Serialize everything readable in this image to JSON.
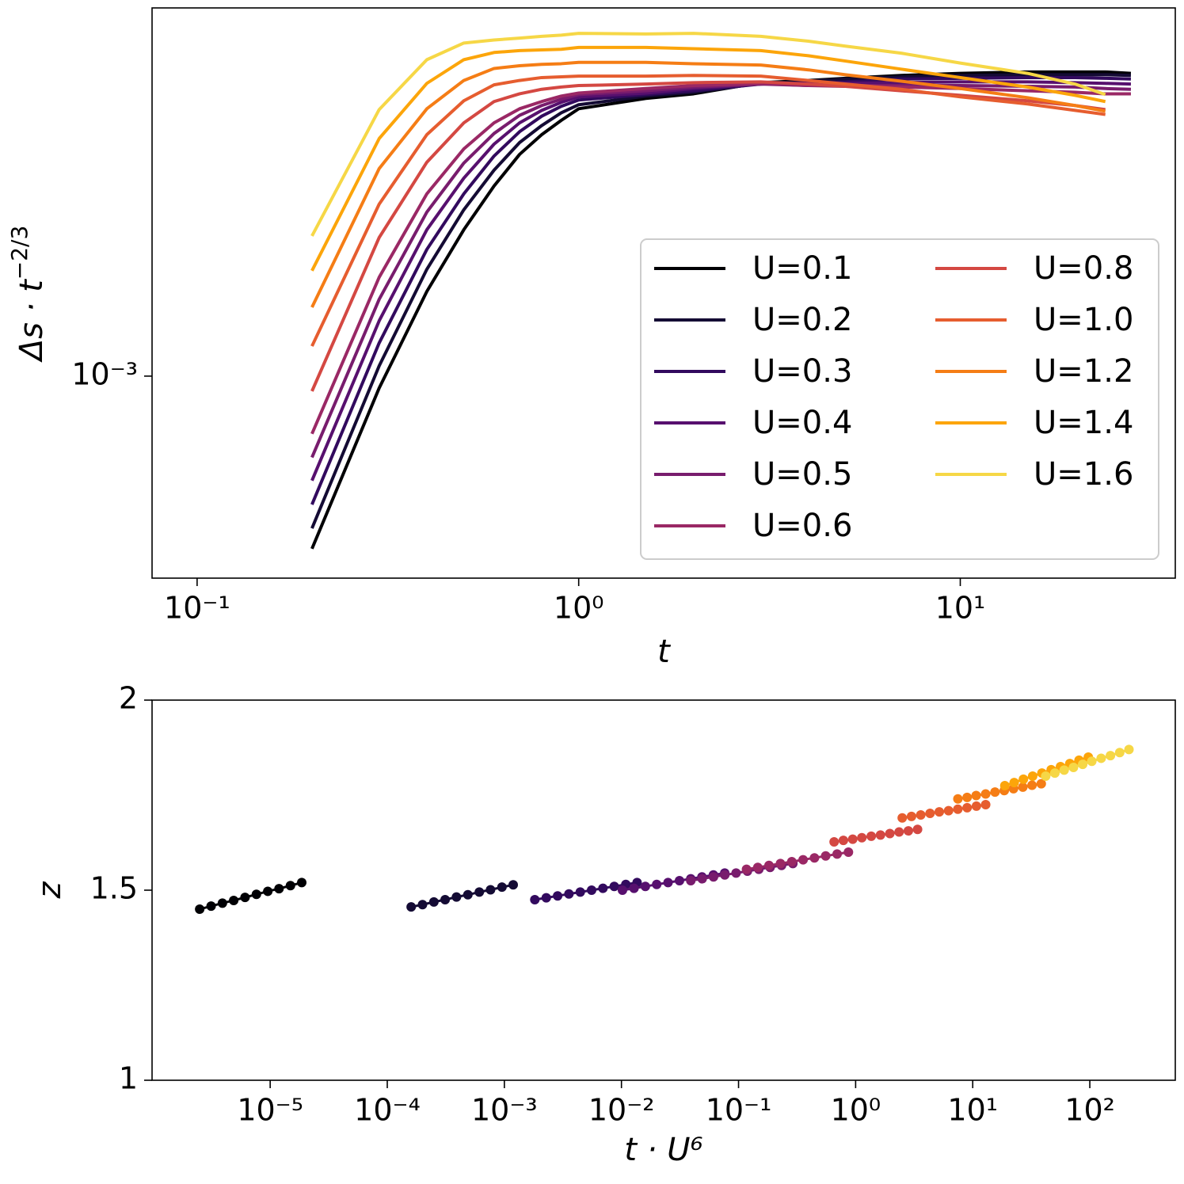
{
  "chart_data": [
    {
      "type": "line",
      "xscale": "log",
      "yscale": "log",
      "xlabel": "t",
      "ylabel": [
        "Δs · t",
        "−2/3"
      ],
      "xlim": [
        0.0762,
        36.6
      ],
      "ylim": [
        0.000436,
        0.00454
      ],
      "xticks": [
        {
          "value": 0.1,
          "label": "10⁻¹"
        },
        {
          "value": 1,
          "label": "10⁰"
        },
        {
          "value": 10,
          "label": "10¹"
        }
      ],
      "yticks": [
        {
          "value": 0.001,
          "label": "10⁻³"
        }
      ],
      "legend": "lower right",
      "legend_ncol": 2,
      "x": [
        0.2,
        0.3,
        0.4,
        0.5,
        0.6,
        0.7,
        0.8,
        0.9,
        1,
        1.5,
        2,
        3,
        4,
        5,
        7,
        10,
        15,
        20,
        24,
        28
      ],
      "series": [
        {
          "name": "U=0.1",
          "color": "#000004",
          "values": [
            0.000492,
            0.000952,
            0.001416,
            0.001825,
            0.002184,
            0.002487,
            0.002697,
            0.00286,
            0.003,
            0.00313,
            0.00319,
            0.00334,
            0.00337,
            0.0034,
            0.00344,
            0.00347,
            0.00349,
            0.00349,
            0.00349,
            0.00347
          ]
        },
        {
          "name": "U=0.2",
          "color": "#140b34",
          "values": [
            0.000535,
            0.001043,
            0.001551,
            0.001981,
            0.002331,
            0.002611,
            0.0028,
            0.00295,
            0.00305,
            0.00316,
            0.00321,
            0.00333,
            0.00336,
            0.00339,
            0.00342,
            0.00344,
            0.00345,
            0.00345,
            0.00345,
            0.00344
          ]
        },
        {
          "name": "U=0.3",
          "color": "#320a5e",
          "values": [
            0.00059,
            0.001146,
            0.001683,
            0.002115,
            0.00247,
            0.00273,
            0.00291,
            0.00303,
            0.00311,
            0.00318,
            0.00323,
            0.00332,
            0.00334,
            0.00335,
            0.00339,
            0.0034,
            0.00341,
            0.00341,
            0.0034,
            0.00339
          ]
        },
        {
          "name": "U=0.4",
          "color": "#57106e",
          "values": [
            0.000651,
            0.001255,
            0.001825,
            0.002256,
            0.002594,
            0.002831,
            0.00298,
            0.00308,
            0.00315,
            0.0032,
            0.00326,
            0.00332,
            0.00333,
            0.00333,
            0.00334,
            0.00335,
            0.00335,
            0.00334,
            0.00333,
            0.00332
          ]
        },
        {
          "name": "U=0.5",
          "color": "#781c6d",
          "values": [
            0.000716,
            0.001371,
            0.001962,
            0.0024,
            0.00271,
            0.00292,
            0.00304,
            0.00312,
            0.00318,
            0.00323,
            0.00328,
            0.00332,
            0.0033,
            0.0033,
            0.0033,
            0.0033,
            0.00329,
            0.00328,
            0.00326,
            0.00325
          ]
        },
        {
          "name": "U=0.6",
          "color": "#9a2865",
          "values": [
            0.000789,
            0.001501,
            0.002115,
            0.002544,
            0.002831,
            0.003,
            0.00309,
            0.00316,
            0.0032,
            0.00326,
            0.0033,
            0.00333,
            0.0033,
            0.00329,
            0.00328,
            0.00326,
            0.00323,
            0.00321,
            0.00319,
            0.00319
          ]
        },
        {
          "name": "U=0.8",
          "color": "#d44842",
          "values": [
            0.00094,
            0.001767,
            0.002408,
            0.002831,
            0.00309,
            0.00319,
            0.00325,
            0.00328,
            0.0033,
            0.00332,
            0.00334,
            0.00335,
            0.00332,
            0.00329,
            0.00323,
            0.00317,
            0.0031,
            0.00304,
            0.00299,
            null
          ]
        },
        {
          "name": "U=1.0",
          "color": "#e65d2f",
          "values": [
            0.001131,
            0.002027,
            0.002697,
            0.0031,
            0.00331,
            0.00337,
            0.00341,
            0.00342,
            0.00343,
            0.00343,
            0.00344,
            0.00343,
            0.00337,
            0.00332,
            0.00325,
            0.00315,
            0.00306,
            0.00298,
            0.00293,
            null
          ]
        },
        {
          "name": "U=1.2",
          "color": "#f57d15",
          "values": [
            0.001327,
            0.002346,
            0.003,
            0.00337,
            0.00354,
            0.00358,
            0.0036,
            0.00361,
            0.00363,
            0.00363,
            0.00361,
            0.00359,
            0.00352,
            0.00345,
            0.00336,
            0.00326,
            0.00314,
            0.00304,
            0.00297,
            null
          ]
        },
        {
          "name": "U=1.4",
          "color": "#fca50a",
          "values": [
            0.001542,
            0.002654,
            0.00333,
            0.00367,
            0.00378,
            0.00381,
            0.00382,
            0.00383,
            0.00386,
            0.00386,
            0.00384,
            0.00381,
            0.00373,
            0.00365,
            0.00353,
            0.00341,
            0.00328,
            0.00317,
            0.00309,
            null
          ]
        },
        {
          "name": "U=1.6",
          "color": "#f6d746",
          "values": [
            0.001779,
            0.00299,
            0.00367,
            0.00393,
            0.00398,
            0.00401,
            0.00404,
            0.00406,
            0.00409,
            0.00408,
            0.00409,
            0.00404,
            0.00396,
            0.00388,
            0.00377,
            0.00362,
            0.00347,
            0.00332,
            0.00318,
            null
          ]
        }
      ]
    },
    {
      "type": "line",
      "markers": true,
      "xscale": "log",
      "xlabel": "t · U⁶",
      "ylabel": [
        "z"
      ],
      "xlim": [
        9.8e-07,
        537
      ],
      "ylim": [
        1,
        2
      ],
      "xticks": [
        {
          "value": 1e-05,
          "label": "10⁻⁵"
        },
        {
          "value": 0.0001,
          "label": "10⁻⁴"
        },
        {
          "value": 0.001,
          "label": "10⁻³"
        },
        {
          "value": 0.01,
          "label": "10⁻²"
        },
        {
          "value": 0.1,
          "label": "10⁻¹"
        },
        {
          "value": 1,
          "label": "10⁰"
        },
        {
          "value": 10,
          "label": "10¹"
        },
        {
          "value": 100,
          "label": "10²"
        }
      ],
      "yticks": [
        1,
        1.5,
        2
      ],
      "series": [
        {
          "color": "#000004",
          "x": [
            2.5e-06,
            3.13e-06,
            3.91e-06,
            4.88e-06,
            6.1e-06,
            7.63e-06,
            9.54e-06,
            1.19e-05,
            1.49e-05,
            1.86e-05
          ],
          "values": [
            1.45,
            1.458,
            1.466,
            1.473,
            1.481,
            1.489,
            1.497,
            1.504,
            1.512,
            1.52
          ]
        },
        {
          "color": "#140b34",
          "x": [
            0.00016,
            0.0002,
            0.00025,
            0.000312,
            0.00039,
            0.000488,
            0.000611,
            0.000762,
            0.000954,
            0.00119
          ],
          "values": [
            1.456,
            1.462,
            1.469,
            1.475,
            1.482,
            1.488,
            1.495,
            1.501,
            1.508,
            1.514
          ]
        },
        {
          "color": "#320a5e",
          "x": [
            0.00182,
            0.00228,
            0.00285,
            0.00356,
            0.00445,
            0.00556,
            0.00695,
            0.00868,
            0.0109,
            0.0136
          ],
          "values": [
            1.475,
            1.48,
            1.485,
            1.49,
            1.495,
            1.5,
            1.505,
            1.51,
            1.515,
            1.52
          ]
        },
        {
          "color": "#57106e",
          "x": [
            0.0102,
            0.0128,
            0.016,
            0.02,
            0.025,
            0.0313,
            0.0391,
            0.0487,
            0.061,
            0.0762
          ],
          "values": [
            1.5,
            1.505,
            1.51,
            1.515,
            1.52,
            1.525,
            1.53,
            1.535,
            1.54,
            1.545
          ]
        },
        {
          "color": "#781c6d",
          "x": [
            0.0391,
            0.0489,
            0.0611,
            0.0763,
            0.0953,
            0.119,
            0.149,
            0.186,
            0.233,
            0.291
          ],
          "values": [
            1.525,
            1.53,
            1.535,
            1.54,
            1.545,
            1.55,
            1.555,
            1.56,
            1.565,
            1.57
          ]
        },
        {
          "color": "#9a2865",
          "x": [
            0.117,
            0.146,
            0.182,
            0.228,
            0.285,
            0.356,
            0.445,
            0.555,
            0.695,
            0.868
          ],
          "values": [
            1.555,
            1.56,
            1.565,
            1.57,
            1.575,
            1.58,
            1.585,
            1.59,
            1.595,
            1.6
          ]
        },
        {
          "color": "#d44842",
          "x": [
            0.655,
            0.786,
            0.944,
            1.13,
            1.36,
            1.63,
            1.96,
            2.35,
            2.82,
            3.38
          ],
          "values": [
            1.627,
            1.631,
            1.634,
            1.638,
            1.642,
            1.645,
            1.649,
            1.653,
            1.656,
            1.66
          ]
        },
        {
          "color": "#e65d2f",
          "x": [
            2.5,
            3,
            3.6,
            4.32,
            5.18,
            6.22,
            7.46,
            8.96,
            10.75,
            12.9
          ],
          "values": [
            1.69,
            1.694,
            1.698,
            1.702,
            1.706,
            1.709,
            1.713,
            1.717,
            1.721,
            1.725
          ]
        },
        {
          "color": "#f57d15",
          "x": [
            7.47,
            8.96,
            10.7,
            12.9,
            15.5,
            18.6,
            22.3,
            26.8,
            32.1,
            38.5
          ],
          "values": [
            1.74,
            1.744,
            1.749,
            1.753,
            1.758,
            1.762,
            1.767,
            1.771,
            1.776,
            1.78
          ]
        },
        {
          "color": "#fca50a",
          "x": [
            18.8,
            22.6,
            27.1,
            32.5,
            39.0,
            46.8,
            56.2,
            67.5,
            80.9,
            97.1
          ],
          "values": [
            1.775,
            1.783,
            1.792,
            1.8,
            1.808,
            1.817,
            1.825,
            1.833,
            1.842,
            1.85
          ]
        },
        {
          "color": "#f6d746",
          "x": [
            42.0,
            50.3,
            60.4,
            72.5,
            86.9,
            104,
            125,
            150,
            180,
            216
          ],
          "values": [
            1.8,
            1.808,
            1.816,
            1.823,
            1.831,
            1.839,
            1.847,
            1.854,
            1.862,
            1.87
          ]
        }
      ]
    }
  ]
}
